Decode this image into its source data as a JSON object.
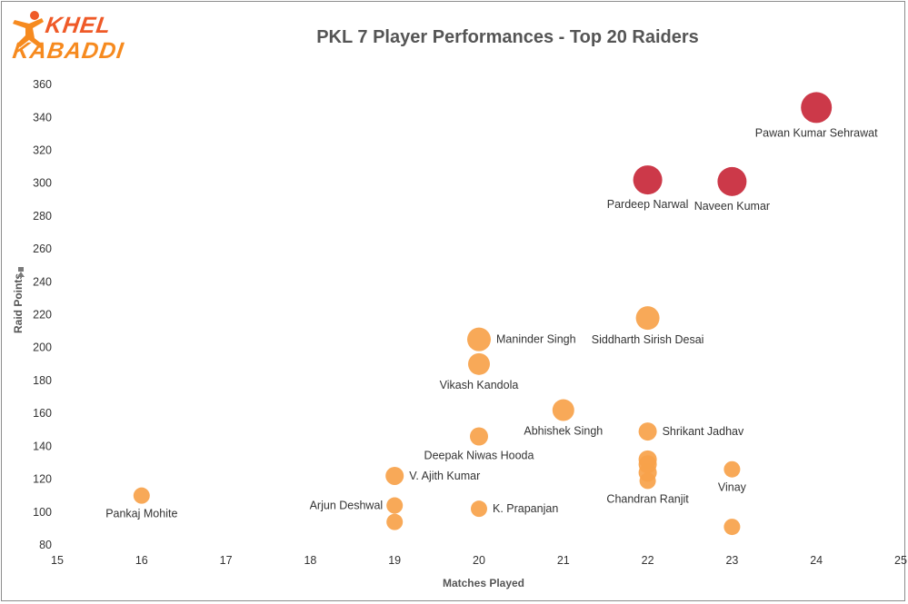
{
  "logo": {
    "line1": "KHEL",
    "line2": "KABADDI"
  },
  "chart_data": {
    "type": "scatter",
    "title": "PKL 7 Player Performances  - Top 20 Raiders",
    "xlabel": "Matches Played",
    "ylabel": "Raid Points",
    "xlim": [
      15,
      25
    ],
    "ylim": [
      80,
      365
    ],
    "x_ticks": [
      15,
      16,
      17,
      18,
      19,
      20,
      21,
      22,
      23,
      24,
      25
    ],
    "y_ticks": [
      80,
      100,
      120,
      140,
      160,
      180,
      200,
      220,
      240,
      260,
      280,
      300,
      320,
      340,
      360
    ],
    "grid": false,
    "colors": {
      "high": "#c8283a",
      "normal": "#f7a24a"
    },
    "points": [
      {
        "name": "Pawan Kumar Sehrawat",
        "x": 24,
        "y": 346,
        "group": "high",
        "size": 17,
        "label_pos": "below"
      },
      {
        "name": "Pardeep Narwal",
        "x": 22,
        "y": 302,
        "group": "high",
        "size": 16,
        "label_pos": "below"
      },
      {
        "name": "Naveen Kumar",
        "x": 23,
        "y": 301,
        "group": "high",
        "size": 16,
        "label_pos": "below"
      },
      {
        "name": "Siddharth Sirish Desai",
        "x": 22,
        "y": 218,
        "group": "normal",
        "size": 13,
        "label_pos": "below"
      },
      {
        "name": "Maninder Singh",
        "x": 20,
        "y": 205,
        "group": "normal",
        "size": 13,
        "label_pos": "right"
      },
      {
        "name": "Vikash Kandola",
        "x": 20,
        "y": 190,
        "group": "normal",
        "size": 12,
        "label_pos": "below"
      },
      {
        "name": "Abhishek Singh",
        "x": 21,
        "y": 162,
        "group": "normal",
        "size": 12,
        "label_pos": "below"
      },
      {
        "name": "Shrikant Jadhav",
        "x": 22,
        "y": 149,
        "group": "normal",
        "size": 10,
        "label_pos": "right"
      },
      {
        "name": "Deepak Niwas Hooda",
        "x": 20,
        "y": 146,
        "group": "normal",
        "size": 10,
        "label_pos": "below"
      },
      {
        "name": "",
        "x": 22,
        "y": 132,
        "group": "normal",
        "size": 10,
        "label_pos": "none"
      },
      {
        "name": "",
        "x": 22,
        "y": 129,
        "group": "normal",
        "size": 10,
        "label_pos": "none"
      },
      {
        "name": "Vinay",
        "x": 23,
        "y": 126,
        "group": "normal",
        "size": 9,
        "label_pos": "below"
      },
      {
        "name": "",
        "x": 22,
        "y": 124,
        "group": "normal",
        "size": 10,
        "label_pos": "none"
      },
      {
        "name": "V. Ajith Kumar",
        "x": 19,
        "y": 122,
        "group": "normal",
        "size": 10,
        "label_pos": "right"
      },
      {
        "name": "Chandran Ranjit",
        "x": 22,
        "y": 119,
        "group": "normal",
        "size": 9,
        "label_pos": "below"
      },
      {
        "name": "Pankaj Mohite",
        "x": 16,
        "y": 110,
        "group": "normal",
        "size": 9,
        "label_pos": "below"
      },
      {
        "name": "Arjun Deshwal",
        "x": 19,
        "y": 104,
        "group": "normal",
        "size": 9,
        "label_pos": "left"
      },
      {
        "name": "K. Prapanjan",
        "x": 20,
        "y": 102,
        "group": "normal",
        "size": 9,
        "label_pos": "right"
      },
      {
        "name": "",
        "x": 19,
        "y": 94,
        "group": "normal",
        "size": 9,
        "label_pos": "none"
      },
      {
        "name": "",
        "x": 23,
        "y": 91,
        "group": "normal",
        "size": 9,
        "label_pos": "none"
      }
    ]
  }
}
